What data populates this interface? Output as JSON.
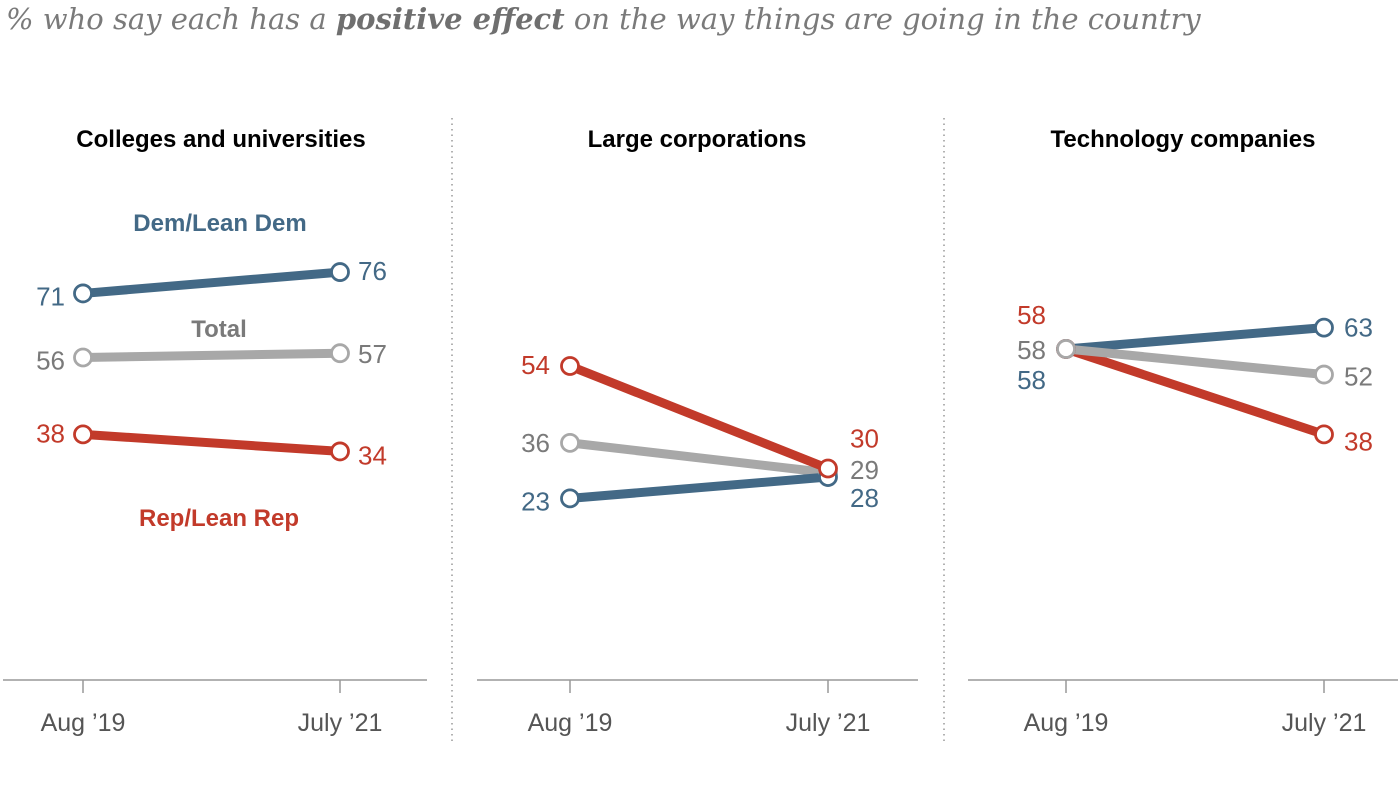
{
  "subtitle": {
    "prefix": "% who say each has a ",
    "emphasis": "positive effect",
    "suffix": " on the way things are going in the country"
  },
  "colors": {
    "dem": "#436986",
    "total": "#a8a8a8",
    "total_text": "#7a7a7a",
    "rep": "#c23a2a",
    "axis": "#999999"
  },
  "chart_data": [
    {
      "type": "line",
      "title": "Colleges and universities",
      "x": [
        "Aug ’19",
        "July ’21"
      ],
      "series": [
        {
          "key": "dem",
          "name": "Dem/Lean Dem",
          "values": [
            71,
            76
          ]
        },
        {
          "key": "total",
          "name": "Total",
          "values": [
            56,
            57
          ]
        },
        {
          "key": "rep",
          "name": "Rep/Lean Rep",
          "values": [
            38,
            34
          ]
        }
      ]
    },
    {
      "type": "line",
      "title": "Large corporations",
      "x": [
        "Aug ’19",
        "July ’21"
      ],
      "series": [
        {
          "key": "dem",
          "values": [
            23,
            28
          ]
        },
        {
          "key": "total",
          "values": [
            36,
            29
          ]
        },
        {
          "key": "rep",
          "values": [
            54,
            30
          ]
        }
      ]
    },
    {
      "type": "line",
      "title": "Technology companies",
      "x": [
        "Aug ’19",
        "July ’21"
      ],
      "series": [
        {
          "key": "dem",
          "values": [
            58,
            63
          ]
        },
        {
          "key": "total",
          "values": [
            58,
            52
          ]
        },
        {
          "key": "rep",
          "values": [
            58,
            38
          ]
        }
      ]
    }
  ]
}
